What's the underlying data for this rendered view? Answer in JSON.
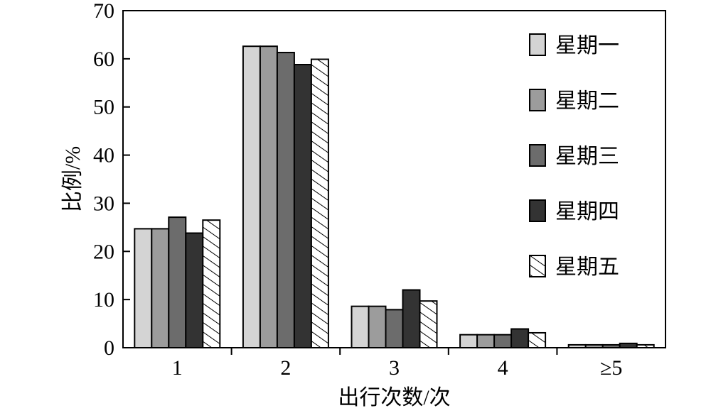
{
  "chart_data": {
    "type": "bar",
    "xlabel": "出行次数/次",
    "ylabel": "比例/%",
    "categories": [
      "1",
      "2",
      "3",
      "4",
      "≥5"
    ],
    "ylim": [
      0,
      70
    ],
    "yticks": [
      0,
      10,
      20,
      30,
      40,
      50,
      60,
      70
    ],
    "grid": false,
    "legend_position": "top-right",
    "series": [
      {
        "name": "星期一",
        "fill": "#d4d4d4",
        "pattern": "solid",
        "values": [
          24.7,
          62.6,
          8.6,
          2.7,
          0.6
        ]
      },
      {
        "name": "星期二",
        "fill": "#9c9c9c",
        "pattern": "solid",
        "values": [
          24.7,
          62.6,
          8.6,
          2.7,
          0.6
        ]
      },
      {
        "name": "星期三",
        "fill": "#6c6c6c",
        "pattern": "solid",
        "values": [
          27.1,
          61.3,
          7.9,
          2.7,
          0.6
        ]
      },
      {
        "name": "星期四",
        "fill": "#333333",
        "pattern": "solid",
        "values": [
          23.8,
          58.8,
          12.0,
          3.9,
          0.9
        ]
      },
      {
        "name": "星期五",
        "fill": "#ffffff",
        "pattern": "hatch",
        "values": [
          26.5,
          59.9,
          9.7,
          3.1,
          0.6
        ]
      }
    ]
  }
}
